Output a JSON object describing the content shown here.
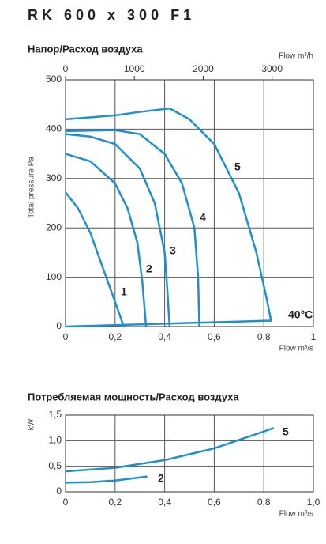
{
  "title": "RK 600 x 300 F1",
  "chart_data": [
    {
      "type": "line",
      "title": "Напор/Расход воздуха",
      "y_label": "Total pressure Pa",
      "x_label": "Flow m³/s",
      "x2_label": "Flow m³/h",
      "xlim": [
        0,
        1
      ],
      "xticks": [
        0,
        {
          "value": 0.2,
          "label": "0,2"
        },
        {
          "value": 0.4,
          "label": "0,4"
        },
        {
          "value": 0.6,
          "label": "0,6"
        },
        {
          "value": 0.8,
          "label": "0,8"
        },
        1
      ],
      "x2lim": [
        0,
        3600
      ],
      "x2ticks": [
        0,
        1000,
        2000,
        3000
      ],
      "ylim": [
        0,
        500
      ],
      "yticks": [
        0,
        100,
        200,
        300,
        400,
        500
      ],
      "grid": true,
      "series": [
        {
          "name": "1",
          "color": "#1f8fd3",
          "x": [
            0,
            0.05,
            0.1,
            0.15,
            0.2,
            0.235
          ],
          "values": [
            272,
            240,
            190,
            120,
            50,
            0
          ]
        },
        {
          "name": "2",
          "color": "#1f8fd3",
          "x": [
            0,
            0.1,
            0.2,
            0.25,
            0.29,
            0.31,
            0.32,
            0.325
          ],
          "values": [
            350,
            335,
            290,
            240,
            170,
            90,
            30,
            0
          ]
        },
        {
          "name": "3",
          "color": "#1f8fd3",
          "x": [
            0,
            0.1,
            0.2,
            0.3,
            0.36,
            0.4,
            0.41,
            0.42
          ],
          "values": [
            390,
            385,
            370,
            320,
            250,
            150,
            80,
            0
          ]
        },
        {
          "name": "4",
          "color": "#1f8fd3",
          "x": [
            0,
            0.2,
            0.3,
            0.4,
            0.47,
            0.52,
            0.535,
            0.54
          ],
          "values": [
            396,
            398,
            390,
            350,
            290,
            200,
            100,
            0
          ]
        },
        {
          "name": "5",
          "color": "#1f8fd3",
          "x": [
            0,
            0.2,
            0.3,
            0.42,
            0.5,
            0.6,
            0.7,
            0.77,
            0.81,
            0.83
          ],
          "values": [
            420,
            428,
            435,
            442,
            420,
            370,
            270,
            150,
            60,
            10
          ]
        },
        {
          "name": "40°C",
          "color": "#1f8fd3",
          "x": [
            0,
            0.83
          ],
          "values": [
            0,
            12
          ]
        }
      ]
    },
    {
      "type": "line",
      "title": "Потребляемая мощность/Расход воздуха",
      "y_label": "kW",
      "x_label": "Flow m³/s",
      "xlim": [
        0,
        1
      ],
      "xticks": [
        0,
        {
          "value": 0.2,
          "label": "0,2"
        },
        {
          "value": 0.4,
          "label": "0,4"
        },
        {
          "value": 0.6,
          "label": "0,6"
        },
        {
          "value": 0.8,
          "label": "0,8"
        },
        {
          "value": 1,
          "label": "1,0"
        }
      ],
      "ylim": [
        0,
        1.5
      ],
      "yticks": [
        0,
        {
          "value": 0.5,
          "label": "0,5"
        },
        {
          "value": 1,
          "label": "1,0"
        },
        {
          "value": 1.5,
          "label": "1,5"
        }
      ],
      "grid": true,
      "series": [
        {
          "name": "5",
          "color": "#1f8fd3",
          "x": [
            0,
            0.2,
            0.4,
            0.6,
            0.8,
            0.84
          ],
          "values": [
            0.4,
            0.47,
            0.62,
            0.85,
            1.18,
            1.25
          ]
        },
        {
          "name": "2",
          "color": "#1f8fd3",
          "x": [
            0,
            0.1,
            0.2,
            0.33
          ],
          "values": [
            0.18,
            0.19,
            0.22,
            0.3
          ]
        }
      ]
    }
  ]
}
